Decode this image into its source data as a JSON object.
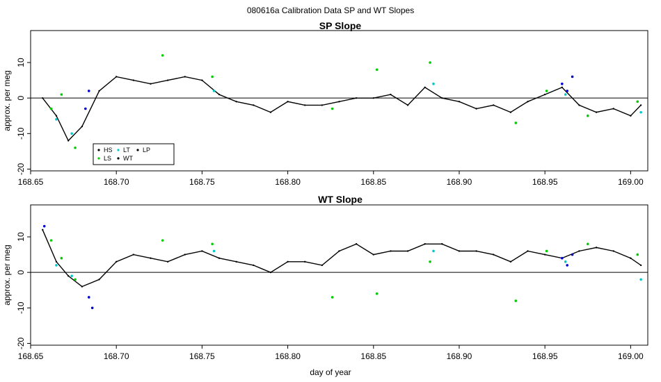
{
  "figure": {
    "main_title": "080616a   Calibration Data SP and WT Slopes",
    "xlabel": "day of year"
  },
  "legend": {
    "placement": "bottom-left of top panel",
    "entries": [
      {
        "label": "HS",
        "color": "#000000"
      },
      {
        "label": "LT",
        "color": "#00c8c8"
      },
      {
        "label": "LP",
        "color": "#000000"
      },
      {
        "label": "LS",
        "color": "#00cc00"
      },
      {
        "label": "WT",
        "color": "#0000cc"
      }
    ]
  },
  "chart_data": [
    {
      "type": "line",
      "title": "SP Slope",
      "xlabel": "",
      "ylabel": "approx. per meg",
      "xlim": [
        168.65,
        169.01
      ],
      "ylim": [
        -20.5,
        19
      ],
      "xticks": [
        "168.65",
        "168.70",
        "168.75",
        "168.80",
        "168.85",
        "168.90",
        "168.95",
        "169.00"
      ],
      "xtick_values": [
        168.65,
        168.7,
        168.75,
        168.8,
        168.85,
        168.9,
        168.95,
        169.0
      ],
      "yticks": [
        "-20",
        "-10",
        "0",
        "10"
      ],
      "ytick_values": [
        -20,
        -10,
        0,
        10
      ],
      "reference_line": 0,
      "grid": false,
      "series": [
        {
          "color": "#000000",
          "x": [
            168.657,
            168.665,
            168.672,
            168.68,
            168.69,
            168.7,
            168.71,
            168.72,
            168.73,
            168.74,
            168.75,
            168.76,
            168.77,
            168.78,
            168.79,
            168.8,
            168.81,
            168.82,
            168.83,
            168.84,
            168.85,
            168.86,
            168.87,
            168.88,
            168.89,
            168.9,
            168.91,
            168.92,
            168.93,
            168.94,
            168.95,
            168.96,
            168.97,
            168.98,
            168.99,
            169.0,
            169.006
          ],
          "y": [
            0,
            -5,
            -12,
            -8,
            2,
            6,
            5,
            4,
            5,
            6,
            5,
            1,
            -1,
            -2,
            -4,
            -1,
            -2,
            -2,
            -1,
            0,
            0,
            1,
            -2,
            3,
            0,
            -1,
            -3,
            -2,
            -4,
            -1,
            1,
            3,
            -2,
            -4,
            -3,
            -5,
            -2
          ]
        }
      ],
      "markers": [
        {
          "color": "#00cc00",
          "x": [
            168.662,
            168.668,
            168.676,
            168.727,
            168.756,
            168.826,
            168.852,
            168.883,
            168.933,
            168.951,
            168.975,
            169.004
          ],
          "y": [
            -3,
            1,
            -14,
            12,
            6,
            -3,
            8,
            10,
            -7,
            2,
            -5,
            -1
          ]
        },
        {
          "color": "#00c8c8",
          "x": [
            168.665,
            168.674,
            168.757,
            168.885,
            168.962,
            169.006
          ],
          "y": [
            -6,
            -10,
            2,
            4,
            1,
            -4
          ]
        },
        {
          "color": "#0000cc",
          "x": [
            168.682,
            168.684,
            168.96,
            168.963,
            168.966
          ],
          "y": [
            -3,
            2,
            4,
            2,
            6
          ]
        }
      ]
    },
    {
      "type": "line",
      "title": "WT Slope",
      "xlabel": "day of year",
      "ylabel": "approx. per meg",
      "xlim": [
        168.65,
        169.01
      ],
      "ylim": [
        -20.5,
        19
      ],
      "xticks": [
        "168.65",
        "168.70",
        "168.75",
        "168.80",
        "168.85",
        "168.90",
        "168.95",
        "169.00"
      ],
      "xtick_values": [
        168.65,
        168.7,
        168.75,
        168.8,
        168.85,
        168.9,
        168.95,
        169.0
      ],
      "yticks": [
        "-20",
        "-10",
        "0",
        "10"
      ],
      "ytick_values": [
        -20,
        -10,
        0,
        10
      ],
      "reference_line": 0,
      "grid": false,
      "series": [
        {
          "color": "#000000",
          "x": [
            168.657,
            168.665,
            168.672,
            168.68,
            168.69,
            168.7,
            168.71,
            168.72,
            168.73,
            168.74,
            168.75,
            168.76,
            168.77,
            168.78,
            168.79,
            168.8,
            168.81,
            168.82,
            168.83,
            168.84,
            168.85,
            168.86,
            168.87,
            168.88,
            168.89,
            168.9,
            168.91,
            168.92,
            168.93,
            168.94,
            168.95,
            168.96,
            168.97,
            168.98,
            168.99,
            169.0,
            169.006
          ],
          "y": [
            12,
            3,
            -1,
            -4,
            -2,
            3,
            5,
            4,
            3,
            5,
            6,
            4,
            3,
            2,
            0,
            3,
            3,
            2,
            6,
            8,
            5,
            6,
            6,
            8,
            8,
            6,
            6,
            5,
            3,
            6,
            5,
            4,
            6,
            7,
            6,
            4,
            2
          ]
        }
      ],
      "markers": [
        {
          "color": "#00cc00",
          "x": [
            168.662,
            168.668,
            168.676,
            168.727,
            168.756,
            168.826,
            168.852,
            168.883,
            168.933,
            168.951,
            168.975,
            169.004
          ],
          "y": [
            9,
            4,
            -2,
            9,
            8,
            -7,
            -6,
            3,
            -8,
            6,
            8,
            5
          ]
        },
        {
          "color": "#00c8c8",
          "x": [
            168.665,
            168.674,
            168.757,
            168.885,
            168.962,
            169.006
          ],
          "y": [
            2,
            -1,
            6,
            6,
            3,
            -2
          ]
        },
        {
          "color": "#0000cc",
          "x": [
            168.658,
            168.684,
            168.686,
            168.96,
            168.963,
            168.966
          ],
          "y": [
            13,
            -7,
            -10,
            4,
            2,
            5
          ]
        }
      ]
    }
  ]
}
